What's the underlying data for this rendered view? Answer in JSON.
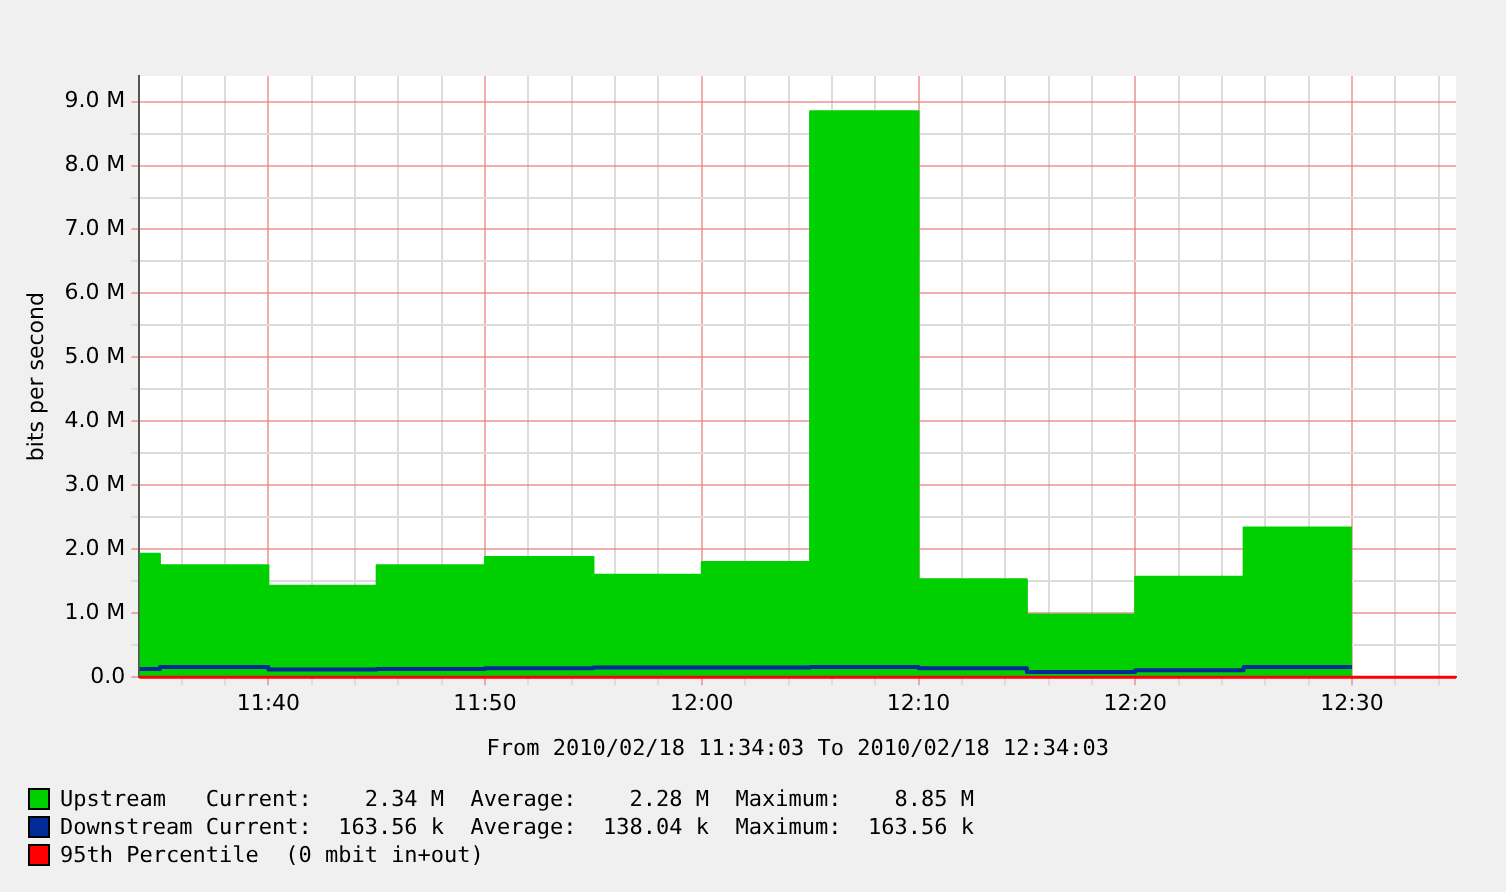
{
  "chart_data": {
    "type": "area",
    "ylabel": "bits per second",
    "xlabel": "From 2010/02/18 11:34:03 To 2010/02/18 12:34:03",
    "xlim": [
      11.5675,
      12.58
    ],
    "ylim": [
      0,
      9.4
    ],
    "xticks": [
      {
        "value": 11.6,
        "label": null
      },
      {
        "value": 11.6333,
        "label": null
      },
      {
        "value": 11.6667,
        "label": "11:40"
      },
      {
        "value": 11.7,
        "label": null
      },
      {
        "value": 11.7333,
        "label": null
      },
      {
        "value": 11.7667,
        "label": null
      },
      {
        "value": 11.8,
        "label": null
      },
      {
        "value": 11.8333,
        "label": "11:50"
      },
      {
        "value": 11.8667,
        "label": null
      },
      {
        "value": 11.9,
        "label": null
      },
      {
        "value": 11.9333,
        "label": null
      },
      {
        "value": 11.9667,
        "label": null
      },
      {
        "value": 12.0,
        "label": "12:00"
      },
      {
        "value": 12.0333,
        "label": null
      },
      {
        "value": 12.0667,
        "label": null
      },
      {
        "value": 12.1,
        "label": null
      },
      {
        "value": 12.1333,
        "label": null
      },
      {
        "value": 12.1667,
        "label": "12:10"
      },
      {
        "value": 12.2,
        "label": null
      },
      {
        "value": 12.2333,
        "label": null
      },
      {
        "value": 12.2667,
        "label": null
      },
      {
        "value": 12.3,
        "label": null
      },
      {
        "value": 12.3333,
        "label": "12:20"
      },
      {
        "value": 12.3667,
        "label": null
      },
      {
        "value": 12.4,
        "label": null
      },
      {
        "value": 12.4333,
        "label": null
      },
      {
        "value": 12.4667,
        "label": null
      },
      {
        "value": 12.5,
        "label": "12:30"
      },
      {
        "value": 12.5333,
        "label": null
      },
      {
        "value": 12.5667,
        "label": null
      }
    ],
    "yticks": [
      {
        "value": 0,
        "label": "0.0"
      },
      {
        "value": 0.5,
        "label": null
      },
      {
        "value": 1,
        "label": "1.0 M"
      },
      {
        "value": 1.5,
        "label": null
      },
      {
        "value": 2,
        "label": "2.0 M"
      },
      {
        "value": 2.5,
        "label": null
      },
      {
        "value": 3,
        "label": "3.0 M"
      },
      {
        "value": 3.5,
        "label": null
      },
      {
        "value": 4,
        "label": "4.0 M"
      },
      {
        "value": 4.5,
        "label": null
      },
      {
        "value": 5,
        "label": "5.0 M"
      },
      {
        "value": 5.5,
        "label": null
      },
      {
        "value": 6,
        "label": "6.0 M"
      },
      {
        "value": 6.5,
        "label": null
      },
      {
        "value": 7,
        "label": "7.0 M"
      },
      {
        "value": 7.5,
        "label": null
      },
      {
        "value": 8,
        "label": "8.0 M"
      },
      {
        "value": 8.5,
        "label": null
      },
      {
        "value": 9,
        "label": "9.0 M"
      }
    ],
    "grid": true,
    "legend": "bottom",
    "series": [
      {
        "name": "Upstream",
        "color": "#00cf00",
        "x": [
          11.5675,
          11.5833,
          11.5833,
          11.6667,
          11.6667,
          11.75,
          11.75,
          11.8333,
          11.8333,
          11.9167,
          11.9167,
          12.0,
          12.0,
          12.0833,
          12.0833,
          12.1667,
          12.1667,
          12.25,
          12.25,
          12.3333,
          12.3333,
          12.4167,
          12.4167,
          12.5
        ],
        "values": [
          1.93,
          1.93,
          1.75,
          1.75,
          1.43,
          1.43,
          1.75,
          1.75,
          1.88,
          1.88,
          1.6,
          1.6,
          1.8,
          1.8,
          8.85,
          8.85,
          1.53,
          1.53,
          0.98,
          0.98,
          1.57,
          1.57,
          2.34,
          2.34
        ]
      },
      {
        "name": "Downstream",
        "color": "#002a97",
        "type": "step",
        "x": [
          11.5675,
          11.5833,
          11.6667,
          11.75,
          11.8333,
          11.9167,
          12.0,
          12.0833,
          12.1667,
          12.25,
          12.3333,
          12.4167,
          12.5
        ],
        "values": [
          0.13,
          0.16,
          0.12,
          0.13,
          0.14,
          0.15,
          0.15,
          0.16,
          0.14,
          0.08,
          0.11,
          0.16,
          0.16
        ]
      }
    ],
    "ref_lines": [
      {
        "axis": "y",
        "value": 0,
        "label": "95th Percentile  (0 mbit in+out)",
        "color": "#ff0000"
      }
    ],
    "annotations": [
      "Current:    2.34 M  Average:    2.28 M  Maximum:    8.85 M",
      "Current:  163.56 k  Average:  138.04 k  Maximum:  163.56 k"
    ]
  }
}
